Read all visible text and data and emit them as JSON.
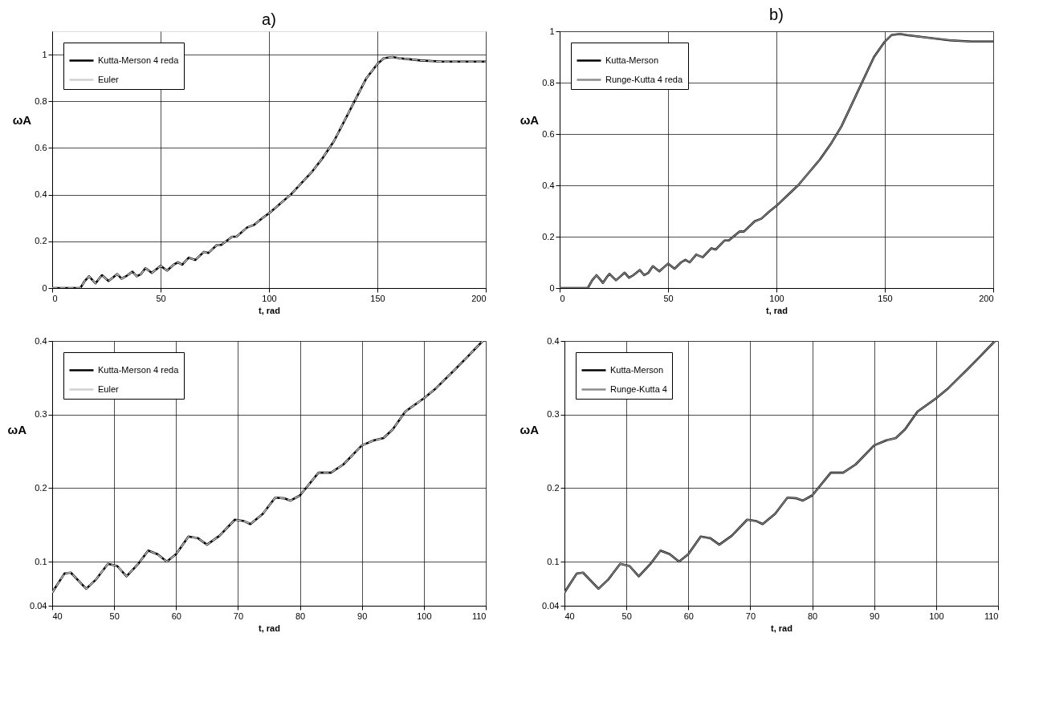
{
  "chart_data": [
    {
      "type": "line",
      "title": "a)",
      "xlabel": "t, rad",
      "ylabel": "ωA",
      "xlim": [
        0,
        200
      ],
      "ylim": [
        0,
        1.1
      ],
      "xticks": [
        0,
        50,
        100,
        150,
        200
      ],
      "yticks": [
        0,
        0.2,
        0.4,
        0.6,
        0.8,
        1
      ],
      "grid": true,
      "legend": "top left",
      "marker": "none",
      "x": [
        0,
        13,
        15,
        17,
        19,
        20,
        22,
        23,
        26,
        28,
        30,
        32,
        34,
        37,
        39,
        41,
        43,
        46,
        48,
        50,
        53,
        56,
        58,
        60,
        63,
        66,
        70,
        72,
        76,
        78,
        83,
        85,
        90,
        93,
        97,
        100,
        105,
        110,
        115,
        120,
        125,
        130,
        135,
        140,
        145,
        150,
        153,
        157,
        160,
        170,
        180,
        190,
        200
      ],
      "series": [
        {
          "name": "Kutta-Merson 4 reda",
          "color": "#000000",
          "line_style": "solid",
          "values": [
            0,
            0,
            0.03,
            0.05,
            0.03,
            0.02,
            0.045,
            0.055,
            0.03,
            0.045,
            0.06,
            0.04,
            0.05,
            0.07,
            0.05,
            0.06,
            0.085,
            0.065,
            0.08,
            0.095,
            0.075,
            0.1,
            0.11,
            0.1,
            0.13,
            0.12,
            0.155,
            0.15,
            0.185,
            0.185,
            0.22,
            0.22,
            0.26,
            0.27,
            0.3,
            0.32,
            0.36,
            0.4,
            0.45,
            0.5,
            0.56,
            0.63,
            0.72,
            0.81,
            0.9,
            0.96,
            0.985,
            0.99,
            0.985,
            0.975,
            0.97,
            0.97,
            0.97
          ]
        },
        {
          "name": "Euler",
          "color": "#d0d0d0",
          "line_style": "dashed",
          "values": [
            0,
            0,
            0.03,
            0.05,
            0.03,
            0.02,
            0.045,
            0.055,
            0.03,
            0.045,
            0.06,
            0.04,
            0.05,
            0.07,
            0.05,
            0.06,
            0.085,
            0.065,
            0.08,
            0.095,
            0.075,
            0.1,
            0.11,
            0.1,
            0.13,
            0.12,
            0.155,
            0.15,
            0.185,
            0.185,
            0.22,
            0.22,
            0.26,
            0.27,
            0.3,
            0.32,
            0.36,
            0.4,
            0.45,
            0.5,
            0.56,
            0.63,
            0.72,
            0.81,
            0.9,
            0.96,
            0.985,
            0.99,
            0.985,
            0.975,
            0.97,
            0.97,
            0.97
          ]
        }
      ]
    },
    {
      "type": "line",
      "title": "b)",
      "xlabel": "t, rad",
      "ylabel": "ωA",
      "xlim": [
        0,
        200
      ],
      "ylim": [
        0,
        1
      ],
      "xticks": [
        0,
        50,
        100,
        150,
        200
      ],
      "yticks": [
        0,
        0.2,
        0.4,
        0.6,
        0.8,
        1
      ],
      "grid": true,
      "legend": "top left",
      "marker": "none",
      "x": [
        0,
        13,
        15,
        17,
        19,
        20,
        22,
        23,
        26,
        28,
        30,
        32,
        34,
        37,
        39,
        41,
        43,
        46,
        48,
        50,
        53,
        56,
        58,
        60,
        63,
        66,
        70,
        72,
        76,
        78,
        83,
        85,
        90,
        93,
        97,
        100,
        105,
        110,
        115,
        120,
        125,
        130,
        135,
        140,
        145,
        150,
        153,
        157,
        160,
        170,
        180,
        190,
        200
      ],
      "series": [
        {
          "name": "Kutta-Merson",
          "color": "#000000",
          "line_style": "solid",
          "values": [
            0,
            0,
            0.03,
            0.05,
            0.03,
            0.02,
            0.045,
            0.055,
            0.03,
            0.045,
            0.06,
            0.04,
            0.05,
            0.07,
            0.05,
            0.06,
            0.085,
            0.065,
            0.08,
            0.095,
            0.075,
            0.1,
            0.11,
            0.1,
            0.13,
            0.12,
            0.155,
            0.15,
            0.185,
            0.185,
            0.22,
            0.22,
            0.26,
            0.27,
            0.3,
            0.32,
            0.36,
            0.4,
            0.45,
            0.5,
            0.56,
            0.63,
            0.72,
            0.81,
            0.9,
            0.96,
            0.985,
            0.99,
            0.985,
            0.975,
            0.965,
            0.96,
            0.96
          ]
        },
        {
          "name": "Runge-Kutta 4 reda",
          "color": "#8c8c8c",
          "line_style": "solid",
          "values": [
            0,
            0,
            0.03,
            0.05,
            0.03,
            0.02,
            0.045,
            0.055,
            0.03,
            0.045,
            0.06,
            0.04,
            0.05,
            0.07,
            0.05,
            0.06,
            0.085,
            0.065,
            0.08,
            0.095,
            0.075,
            0.1,
            0.11,
            0.1,
            0.13,
            0.12,
            0.155,
            0.15,
            0.185,
            0.185,
            0.22,
            0.22,
            0.26,
            0.27,
            0.3,
            0.32,
            0.36,
            0.4,
            0.45,
            0.5,
            0.56,
            0.63,
            0.72,
            0.81,
            0.9,
            0.96,
            0.985,
            0.99,
            0.985,
            0.975,
            0.965,
            0.96,
            0.96
          ]
        }
      ]
    },
    {
      "type": "line",
      "xlabel": "t, rad",
      "ylabel": "ωA",
      "xlim": [
        40,
        110
      ],
      "ylim": [
        0.04,
        0.4
      ],
      "xticks": [
        40,
        50,
        60,
        70,
        80,
        90,
        100,
        110
      ],
      "yticks": [
        0.04,
        0.1,
        0.2,
        0.3,
        0.4
      ],
      "grid": true,
      "legend": "top left",
      "marker": "none",
      "x": [
        40,
        42,
        43,
        45.5,
        47,
        49,
        50.5,
        52,
        54,
        55.5,
        57,
        58.5,
        60,
        62,
        63.5,
        65,
        67,
        69.5,
        71,
        72,
        74,
        76,
        77.5,
        78.5,
        80,
        83,
        85,
        87,
        90,
        92,
        93.5,
        95,
        97,
        100,
        102,
        105,
        107,
        109.5
      ],
      "series": [
        {
          "name": "Kutta-Merson 4 reda",
          "color": "#000000",
          "line_style": "solid",
          "values": [
            0.058,
            0.084,
            0.085,
            0.063,
            0.075,
            0.097,
            0.094,
            0.08,
            0.098,
            0.115,
            0.11,
            0.1,
            0.11,
            0.134,
            0.132,
            0.123,
            0.135,
            0.157,
            0.155,
            0.151,
            0.165,
            0.187,
            0.186,
            0.183,
            0.19,
            0.221,
            0.221,
            0.232,
            0.258,
            0.265,
            0.268,
            0.28,
            0.304,
            0.322,
            0.336,
            0.361,
            0.378,
            0.4
          ]
        },
        {
          "name": "Euler",
          "color": "#d0d0d0",
          "line_style": "dashed",
          "values": [
            0.058,
            0.084,
            0.085,
            0.063,
            0.075,
            0.097,
            0.094,
            0.08,
            0.098,
            0.115,
            0.11,
            0.1,
            0.11,
            0.134,
            0.132,
            0.123,
            0.135,
            0.157,
            0.155,
            0.151,
            0.165,
            0.187,
            0.186,
            0.183,
            0.19,
            0.221,
            0.221,
            0.232,
            0.258,
            0.265,
            0.268,
            0.28,
            0.304,
            0.322,
            0.336,
            0.361,
            0.378,
            0.4
          ]
        }
      ]
    },
    {
      "type": "line",
      "xlabel": "t, rad",
      "ylabel": "ωA",
      "xlim": [
        40,
        110
      ],
      "ylim": [
        0.04,
        0.4
      ],
      "xticks": [
        40,
        50,
        60,
        70,
        80,
        90,
        100,
        110
      ],
      "yticks": [
        0.04,
        0.1,
        0.2,
        0.3,
        0.4
      ],
      "grid": true,
      "legend": "top left",
      "marker": "none",
      "x": [
        40,
        42,
        43,
        45.5,
        47,
        49,
        50.5,
        52,
        54,
        55.5,
        57,
        58.5,
        60,
        62,
        63.5,
        65,
        67,
        69.5,
        71,
        72,
        74,
        76,
        77.5,
        78.5,
        80,
        83,
        85,
        87,
        90,
        92,
        93.5,
        95,
        97,
        100,
        102,
        105,
        107,
        109.5
      ],
      "series": [
        {
          "name": "Kutta-Merson",
          "color": "#000000",
          "line_style": "solid",
          "values": [
            0.058,
            0.084,
            0.085,
            0.063,
            0.075,
            0.097,
            0.094,
            0.08,
            0.098,
            0.115,
            0.11,
            0.1,
            0.11,
            0.134,
            0.132,
            0.123,
            0.135,
            0.157,
            0.155,
            0.151,
            0.165,
            0.187,
            0.186,
            0.183,
            0.19,
            0.221,
            0.221,
            0.232,
            0.258,
            0.265,
            0.268,
            0.28,
            0.304,
            0.322,
            0.336,
            0.361,
            0.378,
            0.4
          ]
        },
        {
          "name": "Runge-Kutta 4",
          "color": "#8c8c8c",
          "line_style": "solid",
          "values": [
            0.058,
            0.084,
            0.085,
            0.063,
            0.075,
            0.097,
            0.094,
            0.08,
            0.098,
            0.115,
            0.11,
            0.1,
            0.11,
            0.134,
            0.132,
            0.123,
            0.135,
            0.157,
            0.155,
            0.151,
            0.165,
            0.187,
            0.186,
            0.183,
            0.19,
            0.221,
            0.221,
            0.232,
            0.258,
            0.265,
            0.268,
            0.28,
            0.304,
            0.322,
            0.336,
            0.361,
            0.378,
            0.4
          ]
        }
      ]
    }
  ]
}
